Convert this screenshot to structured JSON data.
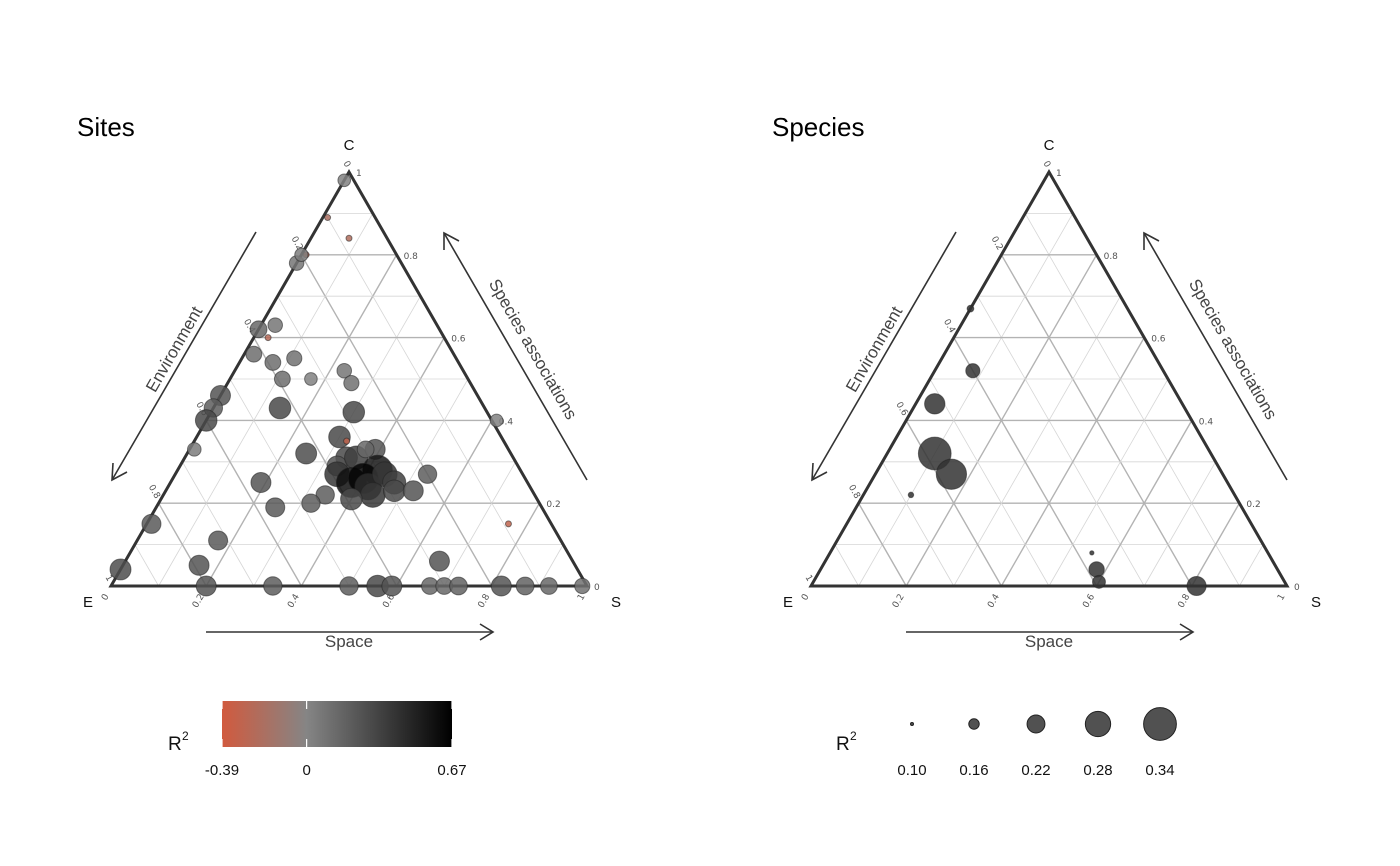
{
  "chart_data": [
    {
      "type": "scatter",
      "subtype": "ternary",
      "title": "Sites",
      "vertices": {
        "top": "C",
        "left": "E",
        "right": "S"
      },
      "axis_labels": {
        "left": "Environment",
        "right": "Species associations",
        "bottom": "Space"
      },
      "tick_labels": {
        "bottom": [
          "0",
          "0.2",
          "0.4",
          "0.6",
          "0.8",
          "1"
        ],
        "left": [
          "0",
          "0.2",
          "0.4",
          "0.6",
          "0.8",
          "1"
        ],
        "right": [
          "0",
          "0.2",
          "0.4",
          "0.6",
          "0.8",
          "1"
        ]
      },
      "grid": true,
      "point_encoding": {
        "size": "R2",
        "color": "R2"
      },
      "points": [
        {
          "S": 0.0,
          "C": 0.98,
          "R2": 0.02
        },
        {
          "S": 0.01,
          "C": 0.89,
          "R2": -0.2
        },
        {
          "S": 0.0,
          "C": 0.78,
          "R2": 0.08
        },
        {
          "S": 0.01,
          "C": 0.8,
          "R2": -0.3
        },
        {
          "S": 0.03,
          "C": 0.63,
          "R2": 0.08
        },
        {
          "S": 0.03,
          "C": 0.6,
          "R2": -0.25
        },
        {
          "S": 0.0,
          "C": 0.62,
          "R2": 0.15
        },
        {
          "S": 0.02,
          "C": 0.56,
          "R2": 0.12
        },
        {
          "S": 0.0,
          "C": 0.46,
          "R2": 0.25
        },
        {
          "S": 0.0,
          "C": 0.43,
          "R2": 0.2
        },
        {
          "S": 0.0,
          "C": 0.4,
          "R2": 0.3
        },
        {
          "S": 0.01,
          "C": 0.33,
          "R2": 0.05
        },
        {
          "S": 0.01,
          "C": 0.15,
          "R2": 0.22
        },
        {
          "S": 0.0,
          "C": 0.04,
          "R2": 0.28
        },
        {
          "S": 0.08,
          "C": 0.84,
          "R2": -0.22
        },
        {
          "S": 0.0,
          "C": 0.8,
          "R2": 0.04
        },
        {
          "S": 0.07,
          "C": 0.54,
          "R2": 0.12
        },
        {
          "S": 0.11,
          "C": 0.55,
          "R2": 0.1
        },
        {
          "S": 0.11,
          "C": 0.5,
          "R2": 0.12
        },
        {
          "S": 0.17,
          "C": 0.5,
          "R2": 0.02
        },
        {
          "S": 0.14,
          "C": 0.43,
          "R2": 0.3
        },
        {
          "S": 0.25,
          "C": 0.32,
          "R2": 0.28
        },
        {
          "S": 0.19,
          "C": 0.25,
          "R2": 0.25
        },
        {
          "S": 0.25,
          "C": 0.19,
          "R2": 0.22
        },
        {
          "S": 0.3,
          "C": 0.42,
          "R2": 0.3
        },
        {
          "S": 0.3,
          "C": 0.36,
          "R2": 0.3
        },
        {
          "S": 0.34,
          "C": 0.31,
          "R2": 0.3
        },
        {
          "S": 0.33,
          "C": 0.29,
          "R2": 0.25
        },
        {
          "S": 0.32,
          "C": 0.35,
          "R2": -0.3
        },
        {
          "S": 0.36,
          "C": 0.31,
          "R2": 0.35
        },
        {
          "S": 0.39,
          "C": 0.33,
          "R2": 0.25
        },
        {
          "S": 0.37,
          "C": 0.33,
          "R2": 0.15
        },
        {
          "S": 0.34,
          "C": 0.27,
          "R2": 0.4
        },
        {
          "S": 0.38,
          "C": 0.25,
          "R2": 0.6
        },
        {
          "S": 0.42,
          "C": 0.28,
          "R2": 0.55
        },
        {
          "S": 0.4,
          "C": 0.26,
          "R2": 0.65
        },
        {
          "S": 0.42,
          "C": 0.24,
          "R2": 0.45
        },
        {
          "S": 0.44,
          "C": 0.27,
          "R2": 0.4
        },
        {
          "S": 0.47,
          "C": 0.25,
          "R2": 0.35
        },
        {
          "S": 0.44,
          "C": 0.22,
          "R2": 0.4
        },
        {
          "S": 0.48,
          "C": 0.23,
          "R2": 0.3
        },
        {
          "S": 0.52,
          "C": 0.23,
          "R2": 0.25
        },
        {
          "S": 0.53,
          "C": 0.27,
          "R2": 0.2
        },
        {
          "S": 0.34,
          "C": 0.22,
          "R2": 0.2
        },
        {
          "S": 0.4,
          "C": 0.21,
          "R2": 0.3
        },
        {
          "S": 0.32,
          "C": 0.2,
          "R2": 0.2
        },
        {
          "S": 0.61,
          "C": 0.4,
          "R2": 0.02
        },
        {
          "S": 0.23,
          "C": 0.52,
          "R2": 0.08
        },
        {
          "S": 0.26,
          "C": 0.49,
          "R2": 0.1
        },
        {
          "S": 0.76,
          "C": 0.15,
          "R2": -0.3
        },
        {
          "S": 0.17,
          "C": 0.11,
          "R2": 0.22
        },
        {
          "S": 0.16,
          "C": 0.05,
          "R2": 0.25
        },
        {
          "S": 0.66,
          "C": 0.06,
          "R2": 0.25
        },
        {
          "S": 0.2,
          "C": 0.0,
          "R2": 0.25
        },
        {
          "S": 0.34,
          "C": 0.0,
          "R2": 0.2
        },
        {
          "S": 0.5,
          "C": 0.0,
          "R2": 0.2
        },
        {
          "S": 0.56,
          "C": 0.0,
          "R2": 0.3
        },
        {
          "S": 0.59,
          "C": 0.0,
          "R2": 0.25
        },
        {
          "S": 0.67,
          "C": 0.0,
          "R2": 0.15
        },
        {
          "S": 0.7,
          "C": 0.0,
          "R2": 0.15
        },
        {
          "S": 0.73,
          "C": 0.0,
          "R2": 0.18
        },
        {
          "S": 0.82,
          "C": 0.0,
          "R2": 0.25
        },
        {
          "S": 0.87,
          "C": 0.0,
          "R2": 0.18
        },
        {
          "S": 0.92,
          "C": 0.0,
          "R2": 0.15
        },
        {
          "S": 0.99,
          "C": 0.0,
          "R2": 0.1
        }
      ],
      "legend": {
        "title": "R",
        "title_superscript": "2",
        "type": "colorbar",
        "min": -0.39,
        "max": 0.67,
        "tick_values": [
          -0.39,
          0,
          0.67
        ],
        "tick_labels": [
          "-0.39",
          "0",
          "0.67"
        ],
        "colors": {
          "low": "#d15a3e",
          "mid": "#858585",
          "high": "#000000"
        }
      }
    },
    {
      "type": "scatter",
      "subtype": "ternary",
      "title": "Species",
      "vertices": {
        "top": "C",
        "left": "E",
        "right": "S"
      },
      "axis_labels": {
        "left": "Environment",
        "right": "Species associations",
        "bottom": "Space"
      },
      "tick_labels": {
        "bottom": [
          "0",
          "0.2",
          "0.4",
          "0.6",
          "0.8",
          "1"
        ],
        "left": [
          "0",
          "0.2",
          "0.4",
          "0.6",
          "0.8",
          "1"
        ],
        "right": [
          "0",
          "0.2",
          "0.4",
          "0.6",
          "0.8",
          "1"
        ]
      },
      "grid": true,
      "point_encoding": {
        "size": "R2"
      },
      "points": [
        {
          "S": 0.0,
          "C": 0.67,
          "R2": 0.13
        },
        {
          "S": 0.08,
          "C": 0.52,
          "R2": 0.19
        },
        {
          "S": 0.04,
          "C": 0.44,
          "R2": 0.24
        },
        {
          "S": 0.1,
          "C": 0.32,
          "R2": 0.34
        },
        {
          "S": 0.16,
          "C": 0.27,
          "R2": 0.32
        },
        {
          "S": 0.1,
          "C": 0.22,
          "R2": 0.12
        },
        {
          "S": 0.55,
          "C": 0.08,
          "R2": 0.11
        },
        {
          "S": 0.58,
          "C": 0.04,
          "R2": 0.2
        },
        {
          "S": 0.6,
          "C": 0.01,
          "R2": 0.18
        },
        {
          "S": 0.81,
          "C": 0.0,
          "R2": 0.23
        }
      ],
      "legend": {
        "title": "R",
        "title_superscript": "2",
        "type": "size",
        "values": [
          0.1,
          0.16,
          0.22,
          0.28,
          0.34
        ],
        "labels": [
          "0.10",
          "0.16",
          "0.22",
          "0.28",
          "0.34"
        ],
        "color": "#333333"
      }
    }
  ]
}
